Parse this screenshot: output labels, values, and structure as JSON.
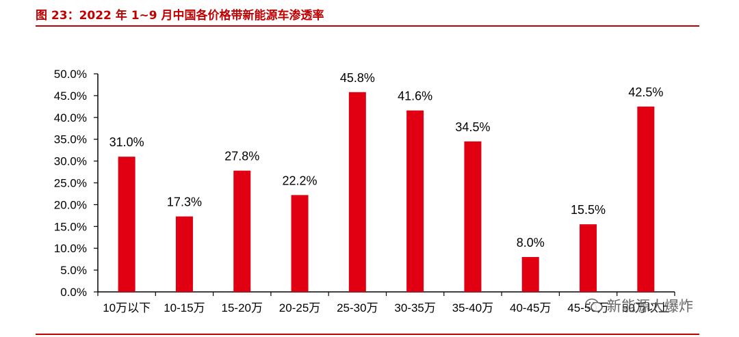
{
  "title": "图 23：2022 年 1~9 月中国各价格带新能源车渗透率",
  "watermark": {
    "text": "新能源大爆炸",
    "icon": "wechat-icon"
  },
  "colors": {
    "bar": "#e00012",
    "rule": "#c00000",
    "axis": "#000000"
  },
  "chart_data": {
    "type": "bar",
    "title": "",
    "xlabel": "",
    "ylabel": "",
    "categories": [
      "10万以下",
      "10-15万",
      "15-20万",
      "20-25万",
      "25-30万",
      "30-35万",
      "35-40万",
      "40-45万",
      "45-50万",
      "50万以上"
    ],
    "values": [
      31.0,
      17.3,
      27.8,
      22.2,
      45.8,
      41.6,
      34.5,
      8.0,
      15.5,
      42.5
    ],
    "data_labels": [
      "31.0%",
      "17.3%",
      "27.8%",
      "22.2%",
      "45.8%",
      "41.6%",
      "34.5%",
      "8.0%",
      "15.5%",
      "42.5%"
    ],
    "ylim": [
      0,
      50
    ],
    "yticks": [
      0,
      5,
      10,
      15,
      20,
      25,
      30,
      35,
      40,
      45,
      50
    ],
    "ytick_labels": [
      "0.0%",
      "5.0%",
      "10.0%",
      "15.0%",
      "20.0%",
      "25.0%",
      "30.0%",
      "35.0%",
      "40.0%",
      "45.0%",
      "50.0%"
    ],
    "grid": false,
    "legend": "none"
  }
}
